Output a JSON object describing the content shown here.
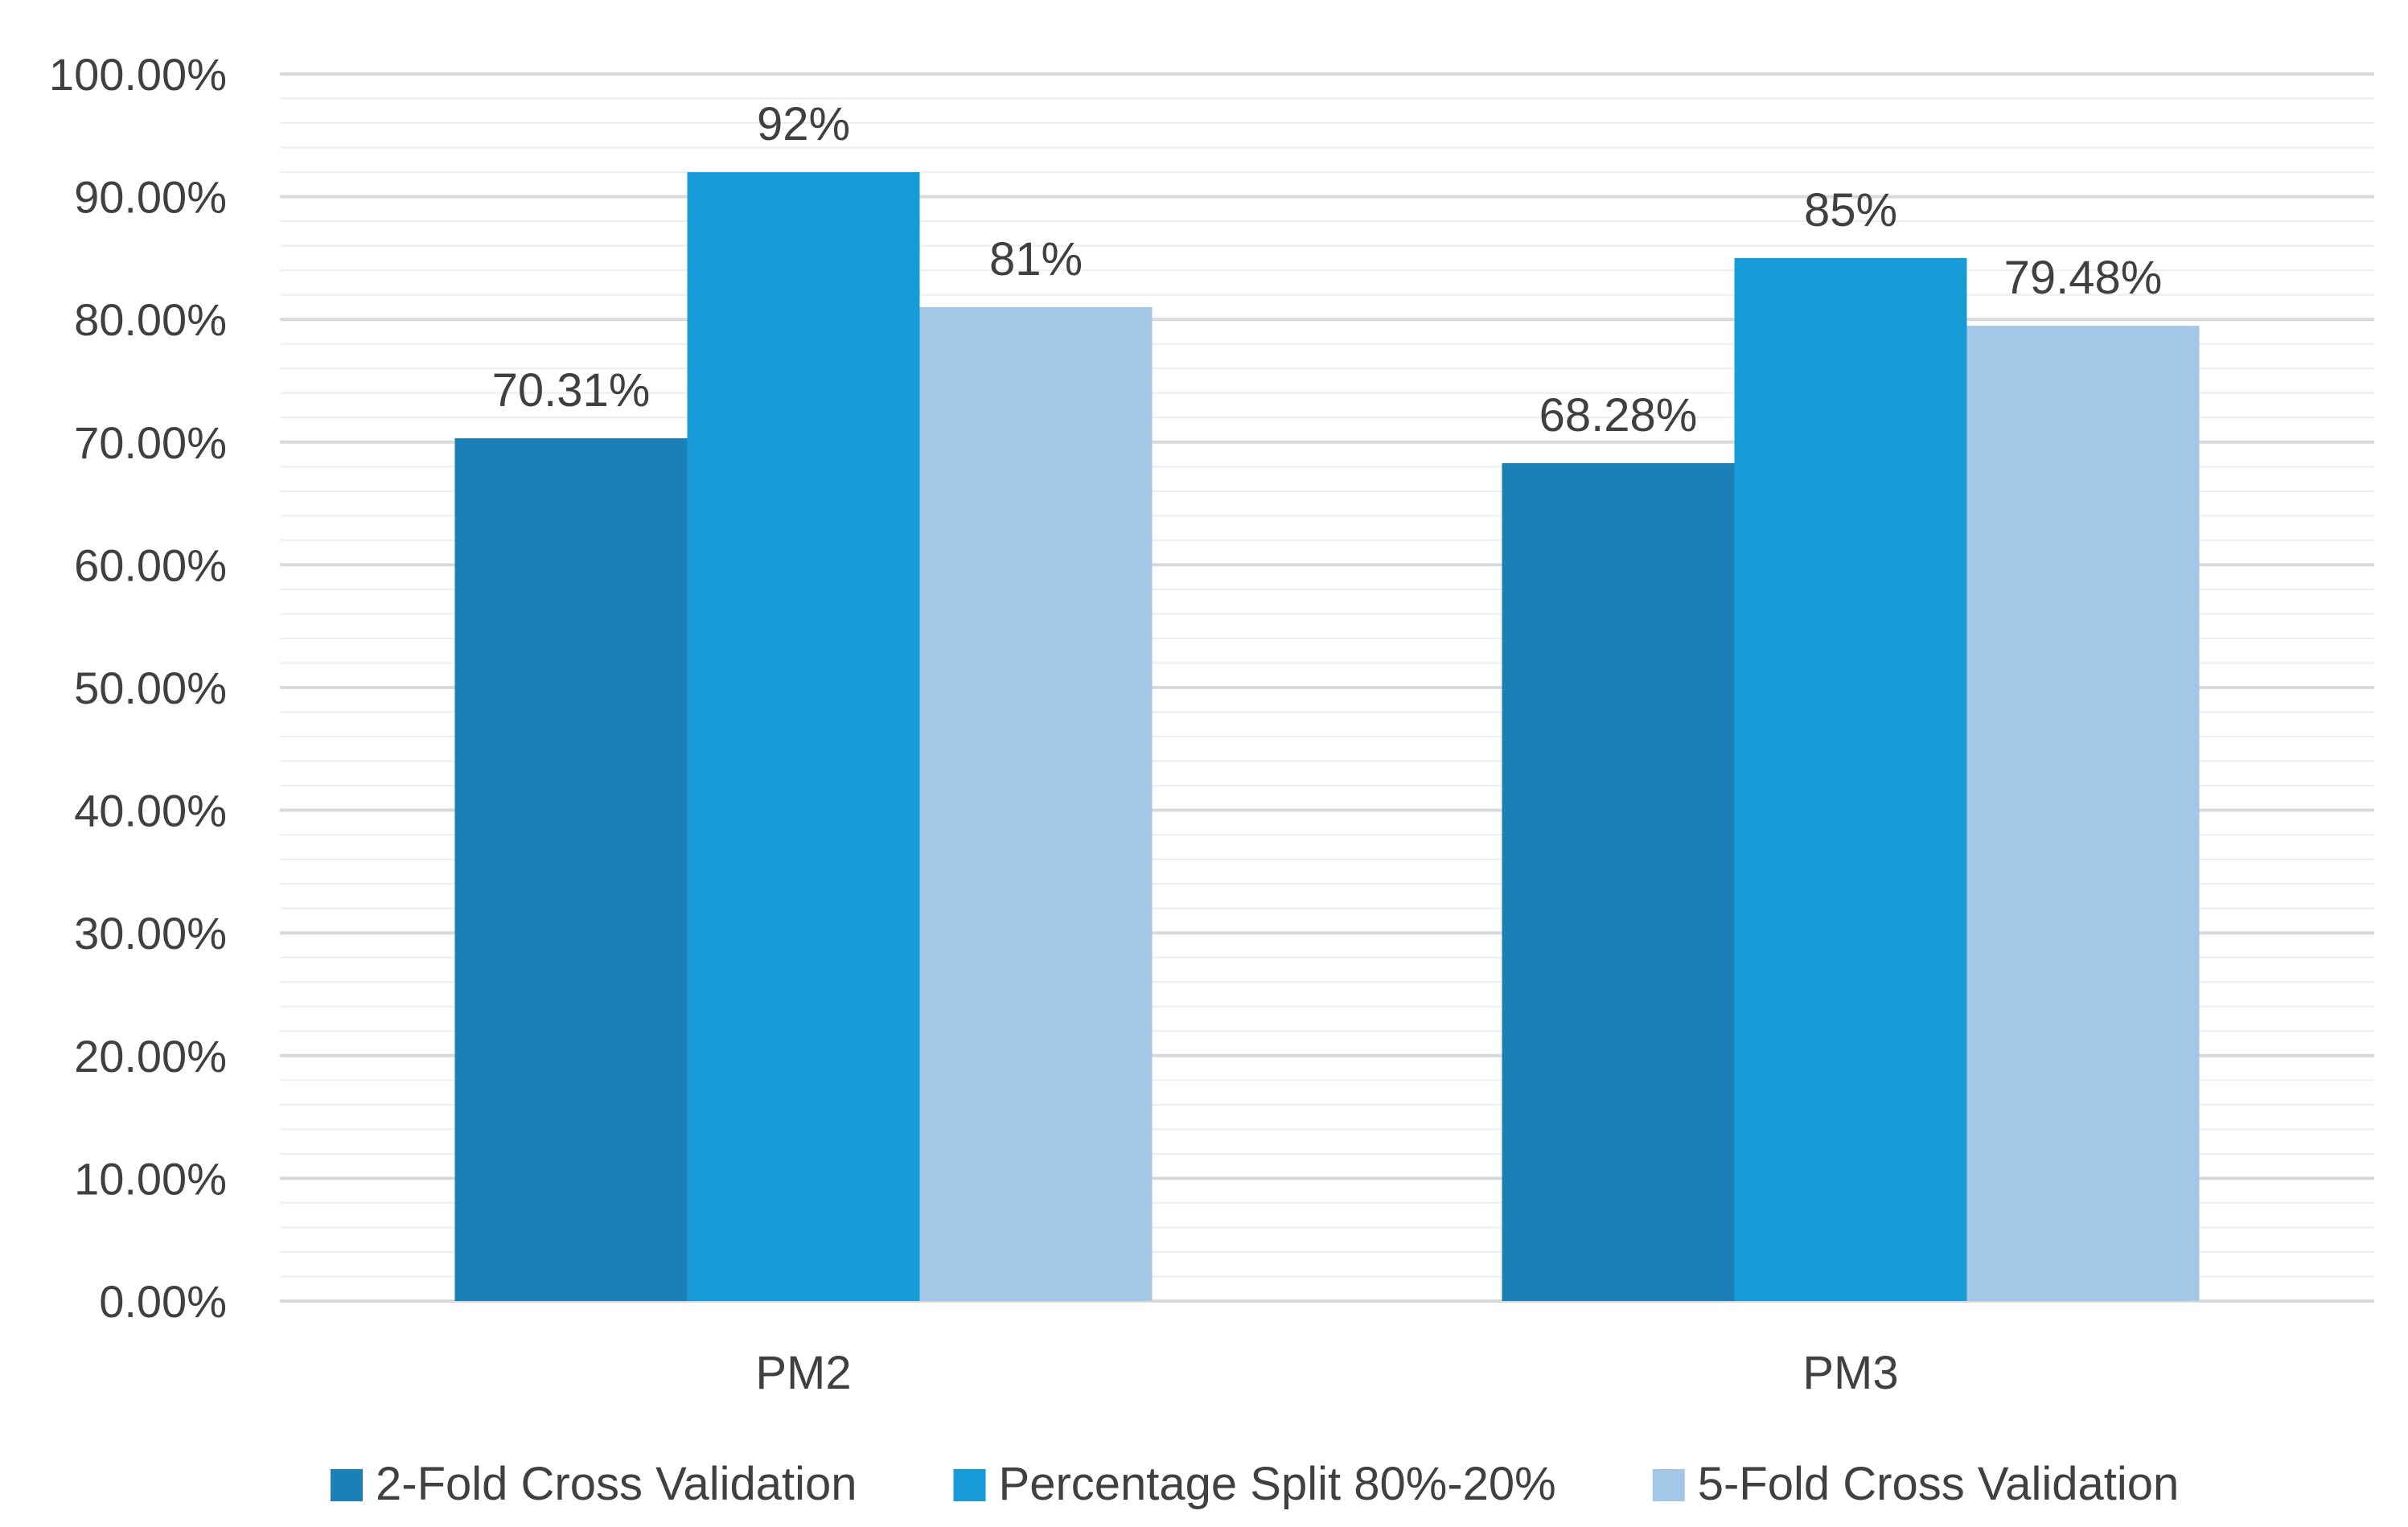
{
  "chart_data": {
    "type": "bar",
    "title": "",
    "xlabel": "",
    "ylabel": "",
    "ylim": [
      0,
      100
    ],
    "y_tick_step": 10,
    "y_minor_step": 2,
    "y_tick_format": "percent_2dp",
    "grid": true,
    "legend_position": "bottom",
    "categories": [
      "PM2",
      "PM3"
    ],
    "series": [
      {
        "name": "2-Fold Cross Validation",
        "color": "#1a80b6",
        "values": [
          70.31,
          68.28
        ],
        "labels": [
          "70.31%",
          "68.28%"
        ]
      },
      {
        "name": "Percentage Split 80%-20%",
        "color": "#189cd8",
        "values": [
          92,
          85
        ],
        "labels": [
          "92%",
          "85%"
        ]
      },
      {
        "name": "5-Fold Cross Validation",
        "color": "#a4c6e7",
        "values": [
          81,
          79.48
        ],
        "labels": [
          "81%",
          "79.48%"
        ]
      }
    ]
  }
}
